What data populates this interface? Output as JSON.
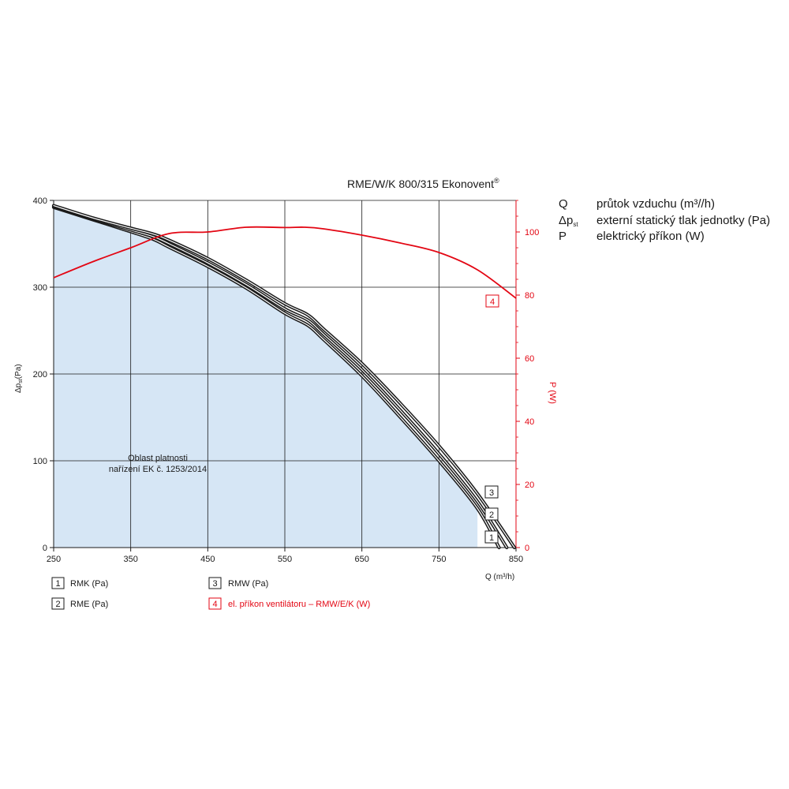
{
  "chart_data": {
    "type": "line",
    "title": "RME/W/K 800/315 Ekonovent",
    "title_mark": "®",
    "xlabel": "Q (m³/h)",
    "ylabel_left_main": "Δp",
    "ylabel_left_sub": "st",
    "ylabel_left_unit": "(Pa)",
    "ylabel_right": "P (W)",
    "xlim": [
      250,
      850
    ],
    "ylim_left": [
      0,
      400
    ],
    "ylim_right": [
      0,
      110
    ],
    "x_ticks": [
      250,
      350,
      450,
      550,
      650,
      750,
      850
    ],
    "y_ticks_left": [
      0,
      100,
      200,
      300,
      400
    ],
    "y_ticks_right": [
      0,
      20,
      40,
      60,
      80,
      100
    ],
    "grid": true,
    "region": {
      "label_line1": "Oblast platnosti",
      "label_line2": "nařízení EK č. 1253/2014",
      "x_max": 800,
      "fill": "#d6e6f5",
      "boundary": [
        [
          250,
          392
        ],
        [
          300,
          378
        ],
        [
          350,
          364
        ],
        [
          380,
          355
        ],
        [
          400,
          346
        ],
        [
          450,
          324
        ],
        [
          500,
          299
        ],
        [
          550,
          270
        ],
        [
          580,
          256
        ],
        [
          600,
          240
        ],
        [
          650,
          198
        ],
        [
          700,
          150
        ],
        [
          750,
          100
        ],
        [
          800,
          45
        ],
        [
          828,
          0
        ]
      ]
    },
    "series": [
      {
        "id": "1",
        "name": "RMK (Pa)",
        "axis": "left",
        "color": "#1a1a1a",
        "x": [
          250,
          300,
          350,
          380,
          400,
          450,
          500,
          550,
          580,
          600,
          650,
          700,
          750,
          800,
          828
        ],
        "y": [
          392,
          378,
          364,
          355,
          346,
          324,
          299,
          270,
          256,
          240,
          198,
          150,
          100,
          45,
          0
        ]
      },
      {
        "id": "2",
        "name": "RME (Pa)",
        "axis": "left",
        "color": "#1a1a1a",
        "x": [
          250,
          300,
          350,
          380,
          400,
          450,
          500,
          550,
          580,
          600,
          650,
          700,
          750,
          800,
          838
        ],
        "y": [
          393,
          379,
          366,
          358,
          350,
          328,
          303,
          275,
          262,
          246,
          205,
          158,
          108,
          53,
          0
        ]
      },
      {
        "id": "3",
        "name": "RMW (Pa)",
        "axis": "left",
        "color": "#1a1a1a",
        "x": [
          250,
          300,
          350,
          380,
          400,
          450,
          500,
          550,
          580,
          600,
          650,
          700,
          750,
          800,
          848
        ],
        "y": [
          394,
          380,
          368,
          361,
          354,
          333,
          308,
          281,
          268,
          252,
          212,
          166,
          117,
          62,
          0
        ]
      },
      {
        "id": "4",
        "name": "el. příkon ventilátoru – RMW/E/K (W)",
        "axis": "right",
        "color": "#e30613",
        "x": [
          250,
          300,
          350,
          400,
          450,
          500,
          550,
          575,
          600,
          650,
          700,
          750,
          800,
          850
        ],
        "y": [
          85.5,
          90.5,
          95,
          99.5,
          100,
          101.5,
          101.4,
          101.5,
          101,
          99,
          96.5,
          93.5,
          88,
          79
        ]
      }
    ]
  },
  "symbols": [
    {
      "sym": "Q",
      "sub": "",
      "text": "průtok vzduchu (m³//h)"
    },
    {
      "sym": "Δp",
      "sub": "st",
      "text": "externí statický tlak jednotky (Pa)"
    },
    {
      "sym": "P",
      "sub": "",
      "text": "elektrický příkon (W)"
    }
  ],
  "legend": [
    {
      "num": "1",
      "label": "RMK (Pa)",
      "red": false
    },
    {
      "num": "3",
      "label": "RMW (Pa)",
      "red": false
    },
    {
      "num": "2",
      "label": "RME (Pa)",
      "red": false
    },
    {
      "num": "4",
      "label": "el. příkon ventilátoru – RMW/E/K (W)",
      "red": true
    }
  ],
  "curve_markers": [
    {
      "num": "3",
      "red": false
    },
    {
      "num": "2",
      "red": false
    },
    {
      "num": "1",
      "red": false
    },
    {
      "num": "4",
      "red": true
    }
  ],
  "colors": {
    "black": "#1a1a1a",
    "red": "#e30613",
    "region": "#d6e6f5",
    "grid": "#1a1a1a"
  }
}
